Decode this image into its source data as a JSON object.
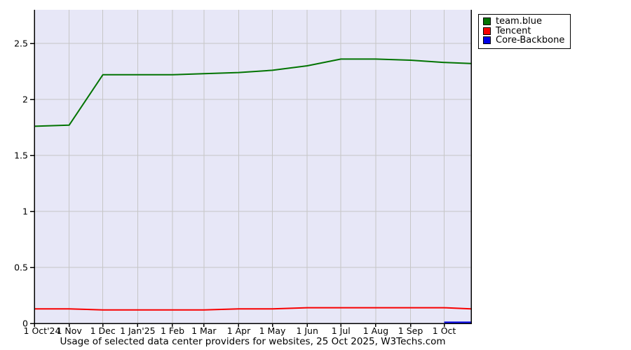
{
  "title": "Usage of selected data center providers for websites, 25 Oct 2025, W3Techs.com",
  "chart_data": {
    "type": "line",
    "title": "Usage of selected data center providers for websites, 25 Oct 2025, W3Techs.com",
    "xlabel": "",
    "ylabel": "",
    "x_unit": "days since 1 Oct 2024",
    "x_range": [
      0,
      389
    ],
    "ylim": [
      0,
      2.8
    ],
    "grid": true,
    "legend_position": "top-right-outside",
    "plot_bg_color": "#e7e7f7",
    "gridline_color": "#c6c6c6",
    "axis_color": "#000000",
    "y_ticks": [
      {
        "value": 0,
        "label": "0"
      },
      {
        "value": 0.5,
        "label": "0.5"
      },
      {
        "value": 1,
        "label": "1"
      },
      {
        "value": 1.5,
        "label": "1.5"
      },
      {
        "value": 2,
        "label": "2"
      },
      {
        "value": 2.5,
        "label": "2.5"
      }
    ],
    "x_ticks": [
      {
        "x": 0,
        "label": "1 Oct'24"
      },
      {
        "x": 31,
        "label": "1 Nov"
      },
      {
        "x": 61,
        "label": "1 Dec"
      },
      {
        "x": 92,
        "label": "1 Jan'25"
      },
      {
        "x": 123,
        "label": "1 Feb"
      },
      {
        "x": 151,
        "label": "1 Mar"
      },
      {
        "x": 182,
        "label": "1 Apr"
      },
      {
        "x": 212,
        "label": "1 May"
      },
      {
        "x": 243,
        "label": "1 Jun"
      },
      {
        "x": 273,
        "label": "1 Jul"
      },
      {
        "x": 304,
        "label": "1 Aug"
      },
      {
        "x": 335,
        "label": "1 Sep"
      },
      {
        "x": 365,
        "label": "1 Oct"
      }
    ],
    "series": [
      {
        "name": "team.blue",
        "color": "#027402",
        "x": [
          0,
          31,
          61,
          92,
          123,
          151,
          182,
          212,
          243,
          273,
          304,
          335,
          365,
          389
        ],
        "values": [
          1.76,
          1.77,
          2.22,
          2.22,
          2.22,
          2.23,
          2.24,
          2.26,
          2.3,
          2.36,
          2.36,
          2.35,
          2.33,
          2.32
        ]
      },
      {
        "name": "Tencent",
        "color": "#f80000",
        "x": [
          0,
          31,
          61,
          92,
          123,
          151,
          182,
          212,
          243,
          273,
          304,
          335,
          365,
          389
        ],
        "values": [
          0.13,
          0.13,
          0.12,
          0.12,
          0.12,
          0.12,
          0.13,
          0.13,
          0.14,
          0.14,
          0.14,
          0.14,
          0.14,
          0.13
        ]
      },
      {
        "name": "Core-Backbone",
        "color": "#0000e8",
        "x": [
          365,
          389
        ],
        "values": [
          0.01,
          0.01
        ]
      }
    ]
  }
}
